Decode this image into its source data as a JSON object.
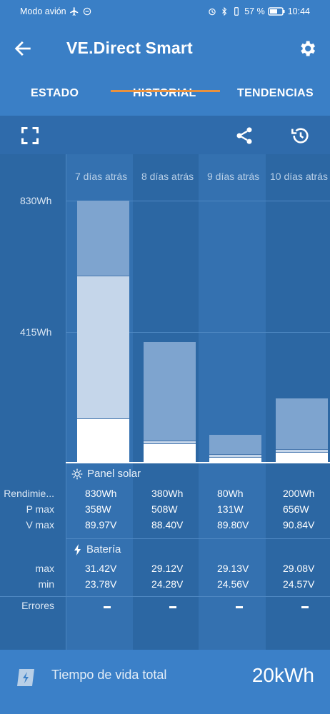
{
  "status_bar": {
    "left_text": "Modo avión",
    "battery_pct": "57 %",
    "time": "10:44"
  },
  "app_bar": {
    "title": "VE.Direct Smart"
  },
  "tabs": [
    {
      "label": "ESTADO"
    },
    {
      "label": "HISTORIAL",
      "selected": true
    },
    {
      "label": "TENDENCIAS"
    }
  ],
  "chart": {
    "y_labels": [
      "830Wh",
      "415Wh"
    ],
    "days": [
      "7 días atrás",
      "8 días atrás",
      "9 días atrás",
      "10 días atrás"
    ]
  },
  "chart_data": {
    "type": "bar",
    "categories": [
      "7 días atrás",
      "8 días atrás",
      "9 días atrás",
      "10 días atrás"
    ],
    "series": [
      {
        "values": [
          830,
          380,
          80,
          200
        ]
      }
    ],
    "ylabel": "",
    "ylim": [
      0,
      830
    ],
    "yticks": [
      415,
      830
    ]
  },
  "solar": {
    "title": "Panel solar",
    "labels": {
      "yield": "Rendimie...",
      "pmax": "P max",
      "vmax": "V max"
    },
    "yield": [
      "830Wh",
      "380Wh",
      "80Wh",
      "200Wh"
    ],
    "pmax": [
      "358W",
      "508W",
      "131W",
      "656W"
    ],
    "vmax": [
      "89.97V",
      "88.40V",
      "89.80V",
      "90.84V"
    ]
  },
  "battery": {
    "title": "Batería",
    "labels": {
      "max": "max",
      "min": "min"
    },
    "max": [
      "31.42V",
      "29.12V",
      "29.13V",
      "29.08V"
    ],
    "min": [
      "23.78V",
      "24.28V",
      "24.56V",
      "24.57V"
    ]
  },
  "errors": {
    "label": "Errores",
    "values": [
      "-",
      "-",
      "-",
      "-"
    ]
  },
  "footer": {
    "label": "Tiempo de vida total",
    "value": "20kWh"
  },
  "colors": {
    "appbar": "#3a7fc6",
    "chart_bg": "#2c67a3",
    "tab_indicator": "#e8913e"
  }
}
